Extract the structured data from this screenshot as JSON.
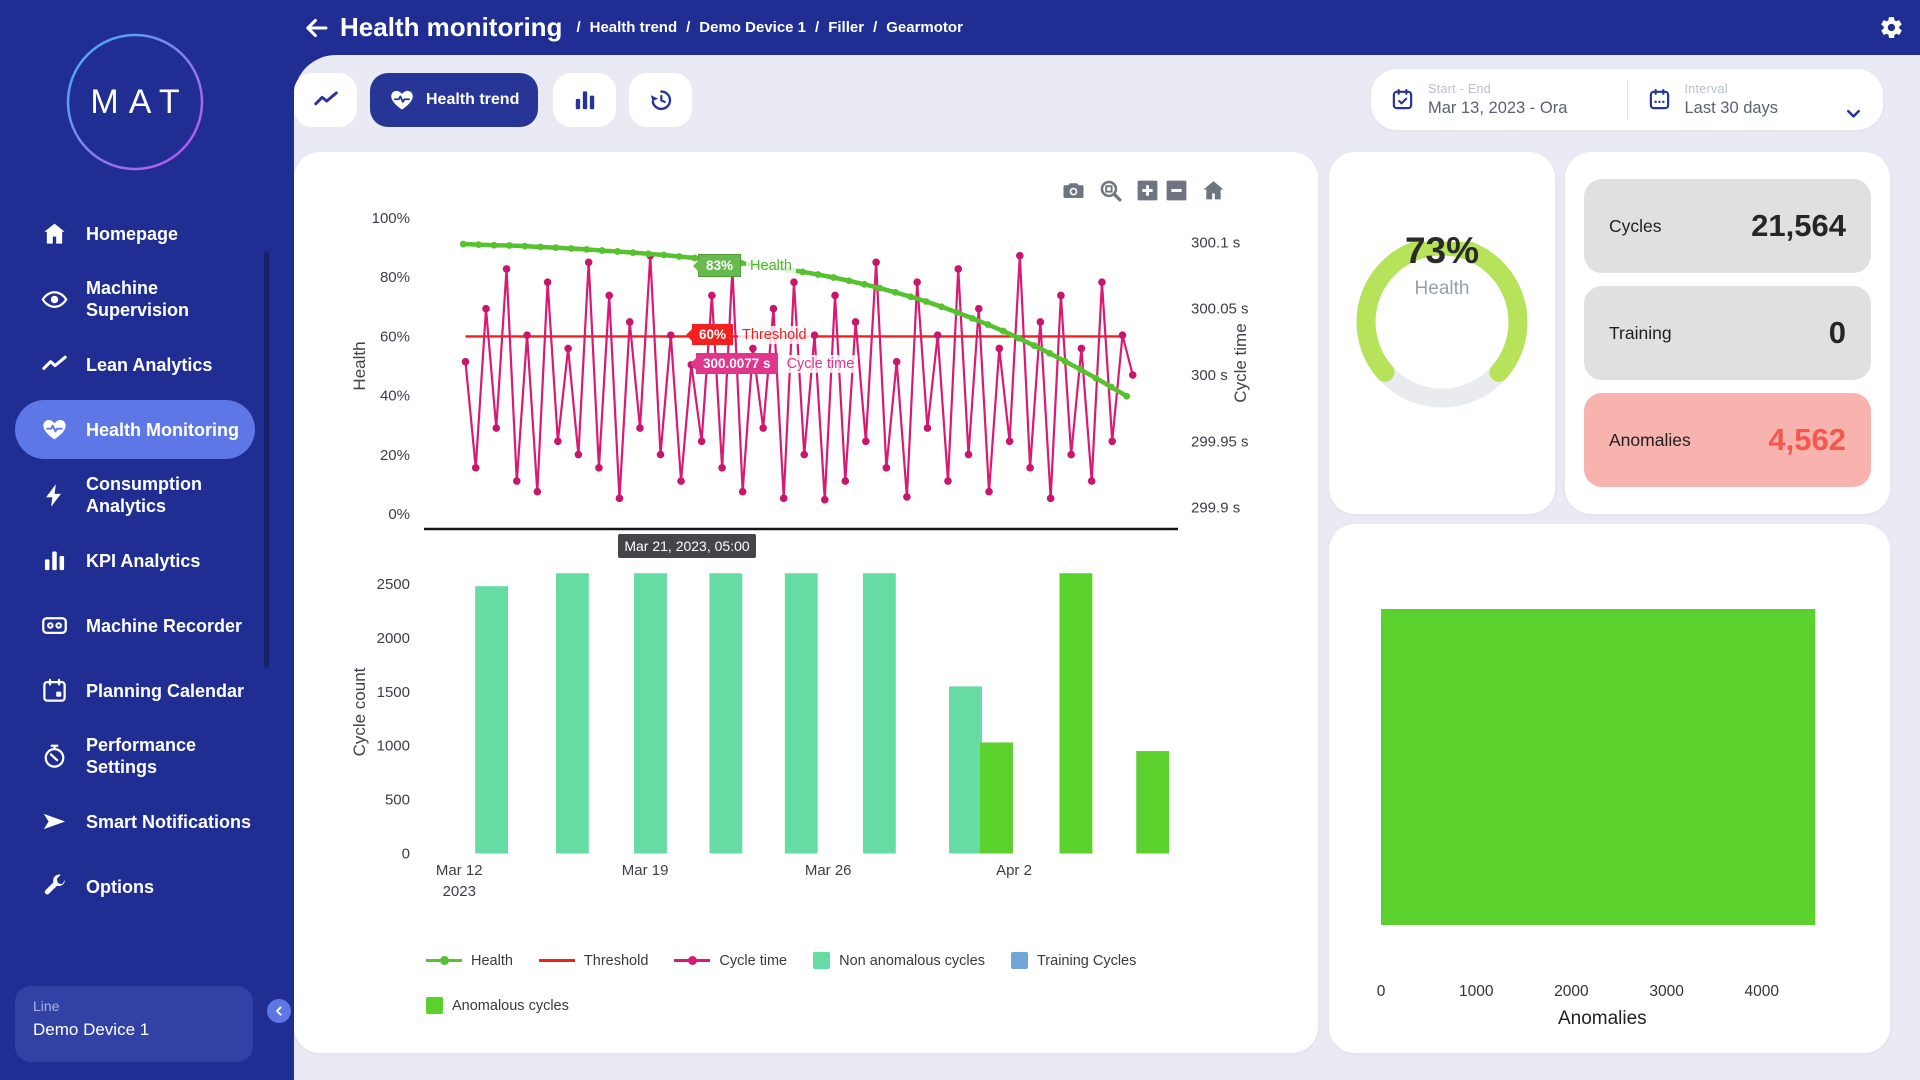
{
  "app": {
    "logo_text": "MAT",
    "sidebar_bg": "#202e93",
    "accent": "#5d77e6",
    "content_bg": "#e9eaf3"
  },
  "header": {
    "title": "Health monitoring",
    "breadcrumbs": [
      "Health trend",
      "Demo Device 1",
      "Filler",
      "Gearmotor"
    ]
  },
  "sidebar": {
    "items": [
      {
        "icon": "home",
        "label": "Homepage",
        "active": false
      },
      {
        "icon": "eye",
        "label": "Machine Supervision",
        "active": false
      },
      {
        "icon": "trend",
        "label": "Lean Analytics",
        "active": false
      },
      {
        "icon": "heart-pulse",
        "label": "Health Monitoring",
        "active": true
      },
      {
        "icon": "bolt",
        "label": "Consumption Analytics",
        "active": false
      },
      {
        "icon": "bars",
        "label": "KPI Analytics",
        "active": false
      },
      {
        "icon": "recorder",
        "label": "Machine Recorder",
        "active": false
      },
      {
        "icon": "calendar",
        "label": "Planning Calendar",
        "active": false
      },
      {
        "icon": "stopwatch",
        "label": "Performance Settings",
        "active": false
      },
      {
        "icon": "send",
        "label": "Smart Notifications",
        "active": false
      },
      {
        "icon": "wrench",
        "label": "Options",
        "active": false
      }
    ],
    "device": {
      "label": "Line",
      "value": "Demo Device 1"
    }
  },
  "tabs": [
    {
      "icon": "trend",
      "label": "",
      "active": false
    },
    {
      "icon": "heart-pulse",
      "label": "Health trend",
      "active": true
    },
    {
      "icon": "bars",
      "label": "",
      "active": false
    },
    {
      "icon": "history",
      "label": "",
      "active": false
    }
  ],
  "filters": {
    "start_end_label": "Start - End",
    "start_end_value": "Mar 13, 2023 - Ora",
    "interval_label": "Interval",
    "interval_value": "Last 30 days"
  },
  "gauge": {
    "percent": 73,
    "value_label": "73%",
    "caption": "Health",
    "color": "#b6e35a",
    "track": "#e9ebee"
  },
  "stats": [
    {
      "label": "Cycles",
      "value": "21,564",
      "variant": "gray"
    },
    {
      "label": "Training",
      "value": "0",
      "variant": "gray"
    },
    {
      "label": "Anomalies",
      "value": "4,562",
      "variant": "red"
    }
  ],
  "legend": [
    {
      "swatch": "line-dot",
      "color": "#56c22f",
      "label": "Health"
    },
    {
      "swatch": "line",
      "color": "#f32020",
      "label": "Threshold"
    },
    {
      "swatch": "line-dot",
      "color": "#d91a72",
      "label": "Cycle time"
    },
    {
      "swatch": "square",
      "color": "#66dba4",
      "label": "Non anomalous cycles"
    },
    {
      "swatch": "square",
      "color": "#71a7d7",
      "label": "Training Cycles"
    },
    {
      "swatch": "break"
    },
    {
      "swatch": "square",
      "color": "#5bd12e",
      "label": "Anomalous cycles"
    }
  ],
  "chart_data": [
    {
      "type": "line",
      "ylabel_left": "Health",
      "ylabel_right": "Cycle time",
      "yticks_left": [
        {
          "v": 100,
          "label": "100%"
        },
        {
          "v": 80,
          "label": "80%"
        },
        {
          "v": 60,
          "label": "60%"
        },
        {
          "v": 40,
          "label": "40%"
        },
        {
          "v": 20,
          "label": "20%"
        },
        {
          "v": 0,
          "label": "0%"
        }
      ],
      "ylim_left": [
        0,
        100
      ],
      "yticks_right": [
        {
          "v": 300.1,
          "label": "300.1 s"
        },
        {
          "v": 300.05,
          "label": "300.05 s"
        },
        {
          "v": 300,
          "label": "300 s"
        },
        {
          "v": 299.95,
          "label": "299.95 s"
        },
        {
          "v": 299.9,
          "label": "299.9 s"
        }
      ],
      "series": [
        {
          "name": "Health",
          "color": "#56c22f",
          "unit": "%",
          "x_frac": [
            0.052,
            0.932
          ],
          "values": [
            91.2,
            91.0,
            90.8,
            90.7,
            90.5,
            90.2,
            90.0,
            89.7,
            89.4,
            89.0,
            88.7,
            88.3,
            87.9,
            87.5,
            87.0,
            86.5,
            86.0,
            85.4,
            84.8,
            84.1,
            83.4,
            82.6,
            81.8,
            80.9,
            79.9,
            78.8,
            77.6,
            76.3,
            74.9,
            73.4,
            71.8,
            70.0,
            68.1,
            66.1,
            64.0,
            61.8,
            59.4,
            56.9,
            54.3,
            51.6,
            48.8,
            45.9,
            42.9,
            39.8
          ]
        },
        {
          "name": "Threshold",
          "color": "#f32020",
          "unit": "%",
          "x_frac": [
            0.055,
            0.93
          ],
          "const_value": 60
        },
        {
          "name": "Cycle time",
          "color": "#d91a72",
          "unit": "s",
          "x_frac": [
            0.055,
            0.94
          ],
          "values": [
            300.01,
            299.93,
            300.05,
            299.96,
            300.08,
            299.92,
            300.03,
            299.912,
            300.07,
            299.95,
            300.02,
            299.94,
            300.085,
            299.93,
            300.06,
            299.907,
            300.04,
            299.96,
            300.09,
            299.94,
            300.03,
            299.92,
            300.0077,
            299.95,
            300.06,
            299.93,
            300.08,
            299.912,
            300.02,
            299.96,
            300.05,
            299.907,
            300.07,
            299.94,
            300.03,
            299.906,
            300.06,
            299.92,
            300.04,
            299.95,
            300.085,
            299.93,
            300.01,
            299.908,
            300.07,
            299.96,
            300.03,
            299.92,
            300.08,
            299.94,
            300.05,
            299.912,
            300.02,
            299.95,
            300.09,
            299.93,
            300.04,
            299.907,
            300.06,
            299.94,
            300.02,
            299.92,
            300.07,
            299.95,
            300.03,
            300.0
          ]
        }
      ],
      "tooltips": {
        "health_value": "83%",
        "health_name": "Health",
        "threshold_value": "60%",
        "threshold_name": "Threshold",
        "cycle_value": "300.0077 s",
        "cycle_name": "Cycle time",
        "x_value": "Mar 21, 2023, 05:00"
      }
    },
    {
      "type": "bar",
      "ylabel": "Cycle count",
      "yticks": [
        {
          "v": 0,
          "label": "0"
        },
        {
          "v": 500,
          "label": "500"
        },
        {
          "v": 1000,
          "label": "1000"
        },
        {
          "v": 1500,
          "label": "1500"
        },
        {
          "v": 2000,
          "label": "2000"
        },
        {
          "v": 2500,
          "label": "2500"
        }
      ],
      "ylim": [
        0,
        2620
      ],
      "xlim_days": [
        0,
        28
      ],
      "xticks": [
        {
          "day": 0.7,
          "lines": [
            "Mar 12",
            "2023"
          ]
        },
        {
          "day": 7.6,
          "lines": [
            "Mar 19"
          ]
        },
        {
          "day": 14.4,
          "lines": [
            "Mar 26"
          ]
        },
        {
          "day": 21.3,
          "lines": [
            "Apr 2"
          ]
        }
      ],
      "bar_width_days": 1.22,
      "series": [
        {
          "name": "Non anomalous cycles",
          "color": "#66dba4",
          "bars": [
            {
              "day": 1.9,
              "value": 2480
            },
            {
              "day": 4.9,
              "value": 2600
            },
            {
              "day": 7.8,
              "value": 2600
            },
            {
              "day": 10.6,
              "value": 2600
            },
            {
              "day": 13.4,
              "value": 2600
            },
            {
              "day": 16.3,
              "value": 2600
            },
            {
              "day": 19.5,
              "value": 1550
            }
          ]
        },
        {
          "name": "Training Cycles",
          "color": "#71a7d7",
          "bars": []
        },
        {
          "name": "Anomalous cycles",
          "color": "#5bd12e",
          "bars": [
            {
              "day": 20.65,
              "value": 1030
            },
            {
              "day": 23.6,
              "value": 2600
            },
            {
              "day": 26.45,
              "value": 950
            }
          ]
        }
      ]
    },
    {
      "type": "hbar",
      "xlabel": "Anomalies",
      "xticks": [
        {
          "v": 0,
          "label": "0"
        },
        {
          "v": 1000,
          "label": "1000"
        },
        {
          "v": 2000,
          "label": "2000"
        },
        {
          "v": 3000,
          "label": "3000"
        },
        {
          "v": 4000,
          "label": "4000"
        }
      ],
      "xlim": [
        0,
        4650
      ],
      "bars": [
        {
          "name": "Anomalies",
          "value": 4562,
          "color": "#5bd12e"
        }
      ]
    }
  ]
}
